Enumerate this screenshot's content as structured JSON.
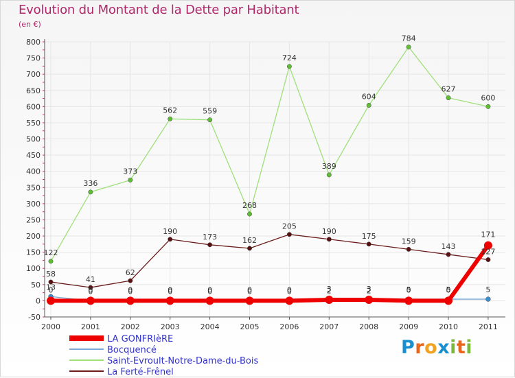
{
  "title": "Evolution du Montant de la Dette par Habitant",
  "subtitle": "(en €)",
  "logo": {
    "text": "Proxiti",
    "letters": [
      "P",
      "r",
      "o",
      "x",
      "i",
      "t",
      "i"
    ]
  },
  "chart_data": {
    "type": "line",
    "x": [
      2000,
      2001,
      2002,
      2003,
      2004,
      2005,
      2006,
      2007,
      2008,
      2009,
      2010,
      2011
    ],
    "ylim": [
      -50,
      800
    ],
    "yticks": [
      -50,
      0,
      50,
      100,
      150,
      200,
      250,
      300,
      350,
      400,
      450,
      500,
      550,
      600,
      650,
      700,
      750,
      800
    ],
    "grid": true,
    "legend_position": "bottom-left",
    "series": [
      {
        "name": "La Ferté-Frênel",
        "color": "#6b1a1a",
        "values": [
          58,
          41,
          62,
          190,
          173,
          162,
          205,
          190,
          175,
          159,
          143,
          127
        ],
        "labels": [
          "58",
          "41",
          "62",
          "190",
          "173",
          "162",
          "205",
          "190",
          "175",
          "159",
          "143",
          "127"
        ]
      },
      {
        "name": "Saint-Evroult-Notre-Dame-du-Bois",
        "color": "#9fe07a",
        "values": [
          122,
          336,
          373,
          562,
          559,
          268,
          724,
          389,
          604,
          784,
          627,
          600
        ],
        "labels": [
          "122",
          "336",
          "373",
          "562",
          "559",
          "268",
          "724",
          "389",
          "604",
          "784",
          "627",
          "600"
        ]
      },
      {
        "name": "Bocquencé",
        "color": "#7aa7d4",
        "values": [
          13,
          0,
          0,
          0,
          0,
          0,
          0,
          2,
          2,
          5,
          5,
          5
        ],
        "labels": [
          "13",
          "0",
          "0",
          "0",
          "0",
          "0",
          "0",
          "2",
          "2",
          "5",
          "5",
          "5"
        ]
      },
      {
        "name": "LA GONFRIèRE",
        "color": "#ee0000",
        "values": [
          0,
          0,
          0,
          0,
          0,
          0,
          0,
          3,
          3,
          0,
          0,
          171
        ],
        "labels": [
          "0",
          "0",
          "0",
          "0",
          "0",
          "0",
          "0",
          "3",
          "3",
          "0",
          "0",
          "171"
        ]
      }
    ]
  }
}
